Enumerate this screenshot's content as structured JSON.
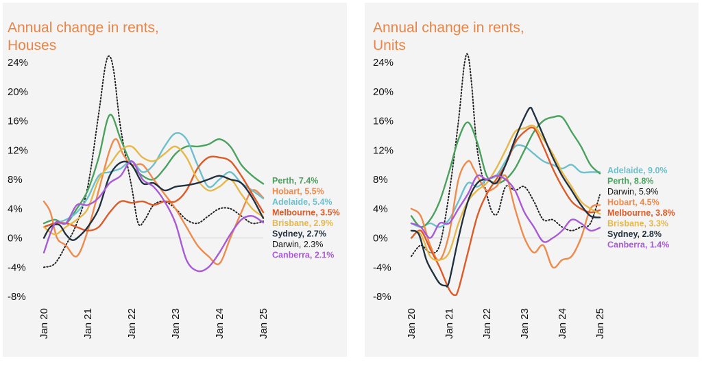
{
  "chart_data": [
    {
      "type": "line",
      "title_lines": [
        "Annual change in rents,",
        "Houses"
      ],
      "ylim": [
        -8,
        24
      ],
      "yticks": [
        "24%",
        "20%",
        "16%",
        "12%",
        "8%",
        "4%",
        "0%",
        "-4%",
        "-8%"
      ],
      "xlim": [
        2020,
        2025
      ],
      "xticks": [
        "Jan 20",
        "Jan 21",
        "Jan 22",
        "Jan 23",
        "Jan 24",
        "Jan 25"
      ],
      "series": [
        {
          "name": "Perth",
          "label": "Perth, 7.4%",
          "color": "#4aa15e",
          "bold": true,
          "dashed": false,
          "x": [
            2020,
            2020.25,
            2020.5,
            2020.75,
            2021,
            2021.25,
            2021.5,
            2021.75,
            2022,
            2022.25,
            2022.5,
            2022.75,
            2023,
            2023.25,
            2023.5,
            2023.75,
            2024,
            2024.25,
            2024.5,
            2024.75,
            2025
          ],
          "y": [
            2,
            2.5,
            2,
            4,
            6.5,
            11,
            16.8,
            13.5,
            10,
            8.5,
            8,
            9.5,
            11.5,
            12.5,
            12.5,
            12.8,
            13.5,
            12.5,
            10,
            8.5,
            7.4
          ]
        },
        {
          "name": "Hobart",
          "label": "Hobart, 5.5%",
          "color": "#ee8a4c",
          "bold": true,
          "dashed": false,
          "x": [
            2020,
            2020.15,
            2020.3,
            2020.5,
            2020.75,
            2021,
            2021.25,
            2021.5,
            2021.65,
            2021.8,
            2022,
            2022.25,
            2022.5,
            2022.75,
            2023,
            2023.25,
            2023.5,
            2023.75,
            2024,
            2024.25,
            2024.5,
            2024.75,
            2025
          ],
          "y": [
            5,
            3.5,
            0,
            -1,
            -2.5,
            1,
            6.5,
            12,
            13.5,
            11.5,
            10,
            10,
            8,
            6,
            4,
            1.5,
            -1,
            -2.5,
            -3.5,
            0,
            3.5,
            6.5,
            5.5
          ]
        },
        {
          "name": "Adelaide",
          "label": "Adelaide, 5.4%",
          "color": "#6ebfcc",
          "bold": true,
          "dashed": false,
          "x": [
            2020,
            2020.25,
            2020.5,
            2020.75,
            2021,
            2021.25,
            2021.5,
            2021.75,
            2022,
            2022.25,
            2022.5,
            2022.75,
            2023,
            2023.25,
            2023.5,
            2023.75,
            2024,
            2024.25,
            2024.5,
            2024.75,
            2025
          ],
          "y": [
            1.5,
            2,
            2.5,
            3.5,
            5.5,
            8.5,
            9,
            9.5,
            10.5,
            9,
            10,
            12.5,
            14.3,
            13.5,
            10,
            7,
            8,
            9,
            7.5,
            6.5,
            5.4
          ]
        },
        {
          "name": "Melbourne",
          "label": "Melbourne, 3.5%",
          "color": "#de5a27",
          "bold": true,
          "dashed": false,
          "x": [
            2020,
            2020.25,
            2020.5,
            2020.75,
            2021,
            2021.25,
            2021.5,
            2021.75,
            2022,
            2022.25,
            2022.5,
            2022.75,
            2023,
            2023.25,
            2023.5,
            2023.75,
            2024,
            2024.25,
            2024.5,
            2024.75,
            2025
          ],
          "y": [
            1.5,
            2,
            2,
            1.5,
            1,
            1.5,
            3.5,
            5,
            4.8,
            5,
            4.5,
            5,
            5,
            6.5,
            9.5,
            11,
            11,
            10.5,
            8.5,
            6,
            3.5
          ]
        },
        {
          "name": "Brisbane",
          "label": "Brisbane, 2.9%",
          "color": "#e6b84a",
          "bold": true,
          "dashed": false,
          "x": [
            2020,
            2020.25,
            2020.5,
            2020.75,
            2021,
            2021.25,
            2021.5,
            2021.75,
            2022,
            2022.25,
            2022.5,
            2022.75,
            2023,
            2023.25,
            2023.5,
            2023.75,
            2024,
            2024.25,
            2024.5,
            2024.75,
            2025
          ],
          "y": [
            1.5,
            0.5,
            1.5,
            2.5,
            4,
            8,
            10,
            12,
            12.5,
            11,
            10.5,
            11.5,
            12.5,
            11,
            8,
            6.5,
            7,
            8,
            6,
            4,
            2.9
          ]
        },
        {
          "name": "Sydney",
          "label": "Sydney, 2.7%",
          "color": "#22313f",
          "bold": true,
          "dashed": false,
          "x": [
            2020,
            2020.15,
            2020.35,
            2020.5,
            2020.65,
            2020.8,
            2021,
            2021.25,
            2021.5,
            2021.75,
            2022,
            2022.25,
            2022.5,
            2022.75,
            2023,
            2023.25,
            2023.5,
            2023.75,
            2024,
            2024.25,
            2024.5,
            2024.75,
            2025
          ],
          "y": [
            0,
            1.5,
            1.8,
            0.5,
            -0.3,
            0.2,
            1.5,
            4,
            8.5,
            10.3,
            10,
            7.5,
            7.5,
            6.5,
            7,
            7.2,
            7.5,
            8,
            8.5,
            8,
            7.5,
            5.5,
            2.7
          ]
        },
        {
          "name": "Darwin",
          "label": "Darwin, 2.3%",
          "color": "#222222",
          "bold": false,
          "dashed": true,
          "x": [
            2020,
            2020.25,
            2020.5,
            2020.75,
            2021,
            2021.25,
            2021.4,
            2021.5,
            2021.6,
            2021.75,
            2022,
            2022.15,
            2022.3,
            2022.5,
            2022.75,
            2023,
            2023.25,
            2023.5,
            2023.75,
            2024,
            2024.25,
            2024.5,
            2024.75,
            2025
          ],
          "y": [
            -4,
            -3.5,
            -1,
            2,
            7,
            17,
            23.5,
            24.8,
            22.5,
            15,
            7,
            2,
            2.5,
            4.5,
            5,
            4,
            2.5,
            2,
            3,
            4,
            4,
            3,
            2,
            2.3
          ]
        },
        {
          "name": "Canberra",
          "label": "Canberra, 2.1%",
          "color": "#a85ad6",
          "bold": true,
          "dashed": false,
          "x": [
            2020,
            2020.25,
            2020.5,
            2020.75,
            2021,
            2021.25,
            2021.5,
            2021.75,
            2022,
            2022.25,
            2022.5,
            2022.75,
            2023,
            2023.25,
            2023.5,
            2023.75,
            2024,
            2024.25,
            2024.5,
            2024.75,
            2025
          ],
          "y": [
            -2,
            2,
            2,
            4.5,
            4.5,
            5.5,
            7.5,
            8.5,
            10.5,
            8,
            7,
            5,
            2,
            -3,
            -4.5,
            -4,
            -2,
            0.5,
            2.5,
            3,
            2.1
          ]
        }
      ],
      "labels_order": [
        "Perth",
        "Hobart",
        "Adelaide",
        "Melbourne",
        "Brisbane",
        "Sydney",
        "Darwin",
        "Canberra"
      ]
    },
    {
      "type": "line",
      "title_lines": [
        "Annual change in rents,",
        "Units"
      ],
      "ylim": [
        -8,
        24
      ],
      "yticks": [
        "24%",
        "20%",
        "16%",
        "12%",
        "8%",
        "4%",
        "0%",
        "-4%",
        "-8%"
      ],
      "xlim": [
        2020,
        2025
      ],
      "xticks": [
        "Jan 20",
        "Jan 21",
        "Jan 22",
        "Jan 23",
        "Jan 24",
        "Jan 25"
      ],
      "series": [
        {
          "name": "Adelaide",
          "label": "Adelaide, 9.0%",
          "color": "#6ebfcc",
          "bold": true,
          "dashed": false,
          "x": [
            2020,
            2020.25,
            2020.5,
            2020.75,
            2021,
            2021.25,
            2021.5,
            2021.75,
            2022,
            2022.25,
            2022.5,
            2022.75,
            2023,
            2023.25,
            2023.5,
            2023.75,
            2024,
            2024.25,
            2024.5,
            2024.75,
            2025
          ],
          "y": [
            2,
            1.5,
            2,
            1.5,
            2.5,
            5,
            7.5,
            7,
            8,
            8.5,
            10.5,
            12.5,
            12.5,
            11.5,
            10.5,
            10,
            9.5,
            10,
            9,
            9,
            9.0
          ]
        },
        {
          "name": "Perth",
          "label": "Perth, 8.8%",
          "color": "#4aa15e",
          "bold": true,
          "dashed": false,
          "x": [
            2020,
            2020.25,
            2020.5,
            2020.75,
            2021,
            2021.25,
            2021.5,
            2021.75,
            2022,
            2022.25,
            2022.5,
            2022.75,
            2023,
            2023.25,
            2023.5,
            2023.75,
            2024,
            2024.25,
            2024.5,
            2024.75,
            2025
          ],
          "y": [
            3,
            1.5,
            2.5,
            5,
            9,
            13.5,
            15.8,
            13,
            8.5,
            7.5,
            8,
            9.5,
            12,
            14.5,
            16,
            16.5,
            16.5,
            14.5,
            12.5,
            10,
            8.8
          ]
        },
        {
          "name": "Darwin",
          "label": "Darwin, 5.9%",
          "color": "#222222",
          "bold": false,
          "dashed": true,
          "x": [
            2020,
            2020.25,
            2020.5,
            2020.75,
            2021,
            2021.25,
            2021.4,
            2021.5,
            2021.6,
            2021.75,
            2022,
            2022.15,
            2022.3,
            2022.5,
            2022.75,
            2023,
            2023.25,
            2023.5,
            2023.75,
            2024,
            2024.25,
            2024.5,
            2024.75,
            2025
          ],
          "y": [
            -2.5,
            -1,
            -2,
            -1,
            6,
            16,
            23.5,
            25,
            21,
            12,
            6,
            3.5,
            3.5,
            7,
            6.5,
            7,
            5,
            2.5,
            2.5,
            1.5,
            1,
            1.5,
            2,
            5.9
          ]
        },
        {
          "name": "Hobart",
          "label": "Hobart, 4.5%",
          "color": "#ee8a4c",
          "bold": true,
          "dashed": false,
          "x": [
            2020,
            2020.25,
            2020.5,
            2020.75,
            2021,
            2021.25,
            2021.5,
            2021.65,
            2021.8,
            2022,
            2022.25,
            2022.5,
            2022.75,
            2023,
            2023.25,
            2023.5,
            2023.75,
            2024,
            2024.25,
            2024.5,
            2024.75,
            2025
          ],
          "y": [
            4,
            3,
            -1,
            -3,
            0.5,
            8,
            10.5,
            9.5,
            8,
            6.5,
            7,
            8.5,
            4,
            0,
            -2,
            -1,
            -4,
            -3,
            -2.5,
            0,
            4,
            4.5
          ]
        },
        {
          "name": "Melbourne",
          "label": "Melbourne, 3.8%",
          "color": "#de5a27",
          "bold": true,
          "dashed": false,
          "x": [
            2020,
            2020.25,
            2020.5,
            2020.75,
            2021,
            2021.15,
            2021.25,
            2021.5,
            2021.75,
            2022,
            2022.25,
            2022.5,
            2022.75,
            2023,
            2023.25,
            2023.5,
            2023.75,
            2024,
            2024.25,
            2024.5,
            2024.75,
            2025
          ],
          "y": [
            0,
            1,
            -1.5,
            -4,
            -7,
            -7.8,
            -7,
            -2,
            3,
            6,
            8,
            10,
            13,
            14.5,
            15,
            12.5,
            9.5,
            7,
            5,
            4,
            3.5,
            3.8
          ]
        },
        {
          "name": "Brisbane",
          "label": "Brisbane, 3.3%",
          "color": "#e6b84a",
          "bold": true,
          "dashed": false,
          "x": [
            2020,
            2020.25,
            2020.5,
            2020.75,
            2021,
            2021.25,
            2021.5,
            2021.75,
            2022,
            2022.25,
            2022.5,
            2022.75,
            2023,
            2023.25,
            2023.5,
            2023.75,
            2024,
            2024.25,
            2024.5,
            2024.75,
            2025
          ],
          "y": [
            1,
            0.5,
            -2.5,
            -3,
            -2,
            2,
            5,
            6.5,
            7.5,
            9.5,
            12,
            14.5,
            15,
            15.3,
            13.5,
            11.5,
            9,
            7,
            5,
            4,
            3.3
          ]
        },
        {
          "name": "Sydney",
          "label": "Sydney, 2.8%",
          "color": "#22313f",
          "bold": true,
          "dashed": false,
          "x": [
            2020,
            2020.2,
            2020.4,
            2020.6,
            2020.75,
            2020.9,
            2021,
            2021.25,
            2021.5,
            2021.75,
            2022,
            2022.25,
            2022.5,
            2022.75,
            2023,
            2023.15,
            2023.25,
            2023.5,
            2023.75,
            2024,
            2024.25,
            2024.5,
            2024.75,
            2025
          ],
          "y": [
            1,
            0.5,
            -3,
            -5,
            -6.2,
            -6.5,
            -6,
            0,
            5,
            7.5,
            8,
            7.5,
            10,
            13.5,
            16.5,
            17.8,
            17,
            14,
            11,
            8.5,
            6.5,
            4.5,
            3,
            2.8
          ]
        },
        {
          "name": "Canberra",
          "label": "Canberra, 1.4%",
          "color": "#a85ad6",
          "bold": true,
          "dashed": false,
          "x": [
            2020,
            2020.25,
            2020.5,
            2020.75,
            2021,
            2021.25,
            2021.5,
            2021.75,
            2022,
            2022.25,
            2022.5,
            2022.75,
            2023,
            2023.25,
            2023.5,
            2023.75,
            2024,
            2024.25,
            2024.5,
            2024.75,
            2025
          ],
          "y": [
            2,
            1.5,
            0,
            2,
            2,
            4,
            6,
            8.5,
            8,
            8.5,
            8,
            6.5,
            3.5,
            1.5,
            -0.5,
            0,
            1,
            2.5,
            2,
            1,
            1.4
          ]
        }
      ],
      "labels_order": [
        "Adelaide",
        "Perth",
        "Darwin",
        "Hobart",
        "Melbourne",
        "Brisbane",
        "Sydney",
        "Canberra"
      ]
    }
  ]
}
